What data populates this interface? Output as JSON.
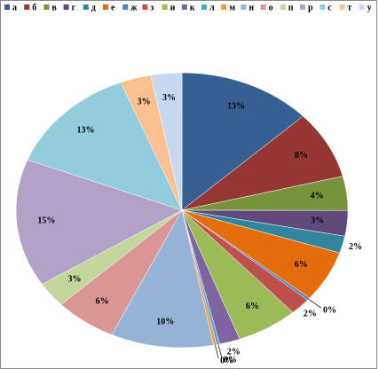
{
  "chart_data": {
    "type": "pie",
    "categories": [
      "а",
      "б",
      "в",
      "г",
      "д",
      "е",
      "ж",
      "з",
      "и",
      "к",
      "л",
      "м",
      "н",
      "о",
      "п",
      "р",
      "с",
      "т",
      "у"
    ],
    "values": [
      13,
      8,
      4,
      3,
      2,
      6,
      0.3,
      2,
      6,
      2,
      0.3,
      0.3,
      10,
      6,
      3,
      15,
      13,
      3,
      3
    ],
    "value_labels": [
      "13%",
      "8%",
      "4%",
      "3%",
      "2%",
      "6%",
      "0%",
      "2%",
      "6%",
      "2%",
      "0%",
      "0%",
      "10%",
      "6%",
      "3%",
      "15%",
      "13%",
      "3%",
      "3%"
    ],
    "colors": [
      "#376092",
      "#953735",
      "#77933c",
      "#604a7b",
      "#31859c",
      "#e46c0a",
      "#4f81bd",
      "#c0504d",
      "#9bbb59",
      "#8064a2",
      "#4bacc6",
      "#f79646",
      "#95b3d7",
      "#d99694",
      "#c3d69b",
      "#b3a2c7",
      "#93cddd",
      "#fac090",
      "#c6d9f1"
    ],
    "legend": "top"
  }
}
